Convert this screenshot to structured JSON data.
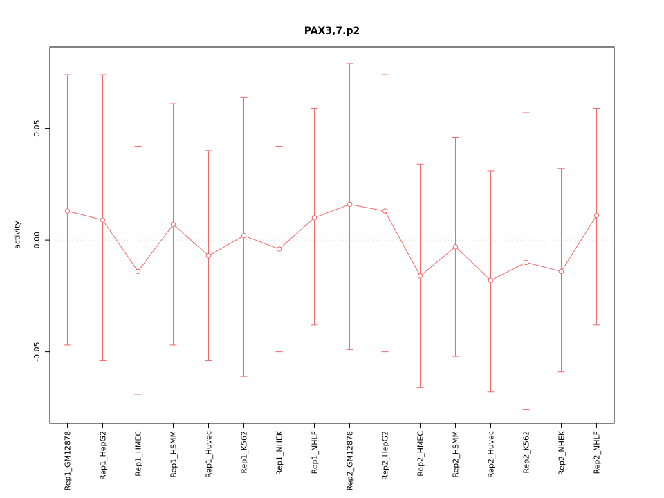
{
  "chart_data": {
    "type": "line",
    "title": "PAX3,7.p2",
    "xlabel": "",
    "ylabel": "activity",
    "categories": [
      "Rep1_GM12878",
      "Rep1_HepG2",
      "Rep1_HMEC",
      "Rep1_HSMM",
      "Rep1_Huvec",
      "Rep1_K562",
      "Rep1_NHEK",
      "Rep1_NHLF",
      "Rep2_GM12878",
      "Rep2_HepG2",
      "Rep2_HMEC",
      "Rep2_HSMM",
      "Rep2_Huvec",
      "Rep2_K562",
      "Rep2_NHEK",
      "Rep2_NHLF"
    ],
    "series": [
      {
        "name": "activity",
        "values": [
          0.013,
          0.009,
          -0.014,
          0.007,
          -0.007,
          0.002,
          -0.004,
          0.01,
          0.016,
          0.013,
          -0.016,
          -0.003,
          -0.018,
          -0.01,
          -0.014,
          0.011
        ],
        "upper": [
          0.074,
          0.074,
          0.042,
          0.061,
          0.04,
          0.064,
          0.042,
          0.059,
          0.079,
          0.074,
          0.034,
          0.046,
          0.031,
          0.057,
          0.032,
          0.059
        ],
        "lower": [
          -0.047,
          -0.054,
          -0.069,
          -0.047,
          -0.054,
          -0.061,
          -0.05,
          -0.038,
          -0.049,
          -0.05,
          -0.066,
          -0.052,
          -0.068,
          -0.076,
          -0.059,
          -0.038
        ]
      }
    ],
    "yticks": [
      -0.05,
      0,
      0.05
    ],
    "ylim": [
      -0.082,
      0.0864
    ],
    "zero_line": true,
    "grid": false,
    "legend": "none",
    "colors": {
      "series": "#ef6a6a",
      "zero_line": "#d9d9d9",
      "frame": "#000000",
      "text": "#000000"
    }
  }
}
